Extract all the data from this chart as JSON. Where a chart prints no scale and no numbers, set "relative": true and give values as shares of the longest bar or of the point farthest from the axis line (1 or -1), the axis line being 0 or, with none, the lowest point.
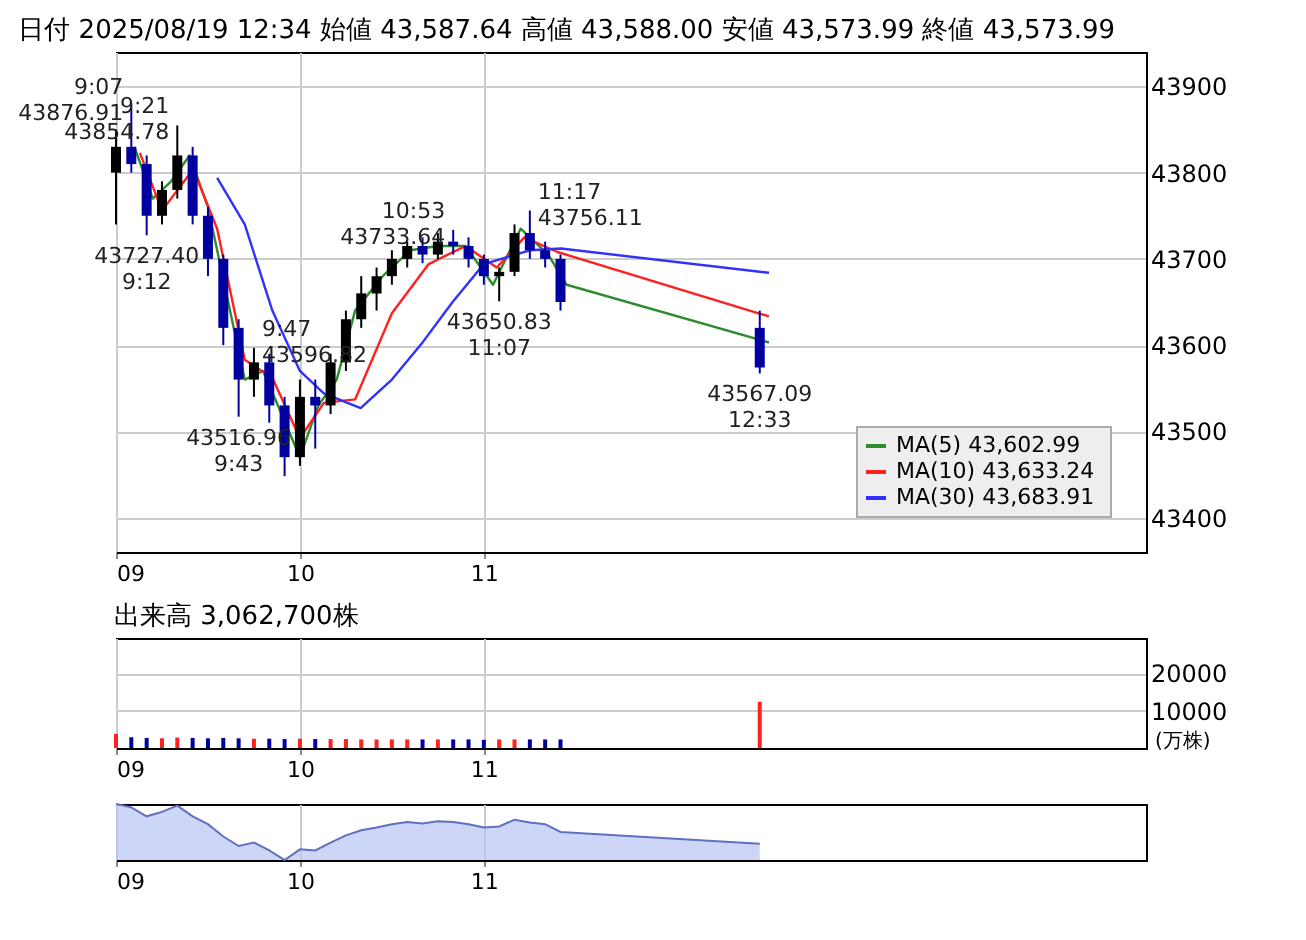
{
  "chart_data": [
    {
      "type": "candlestick",
      "title": "日付 2025/08/19 12:34 始値 43,587.64 高値 43,588.00 安値 43,573.99 終値 43,573.99",
      "x": [
        9,
        9.0833,
        9.1667,
        9.25,
        9.3333,
        9.4167,
        9.5,
        9.5833,
        9.6667,
        9.75,
        9.8333,
        9.9167,
        10,
        10.0833,
        10.1667,
        10.25,
        10.3333,
        10.4167,
        10.5,
        10.5833,
        10.6667,
        10.75,
        10.8333,
        10.9167,
        11,
        11.0833,
        11.1667,
        11.25,
        11.3333,
        11.4167,
        12.5
      ],
      "ohlc": [
        [
          43800,
          43850,
          43740,
          43830
        ],
        [
          43830,
          43876.91,
          43800,
          43810
        ],
        [
          43810,
          43820,
          43727.4,
          43750
        ],
        [
          43750,
          43790,
          43740,
          43780
        ],
        [
          43780,
          43854.78,
          43770,
          43820
        ],
        [
          43820,
          43830,
          43740,
          43750
        ],
        [
          43750,
          43760,
          43680,
          43700
        ],
        [
          43700,
          43705,
          43600,
          43620
        ],
        [
          43620,
          43630,
          43516.96,
          43560
        ],
        [
          43560,
          43596.82,
          43540,
          43580
        ],
        [
          43580,
          43590,
          43510,
          43530
        ],
        [
          43530,
          43540,
          43448,
          43470
        ],
        [
          43470,
          43560,
          43460,
          43540
        ],
        [
          43540,
          43560,
          43480,
          43530
        ],
        [
          43530,
          43590,
          43520,
          43580
        ],
        [
          43580,
          43640,
          43570,
          43630
        ],
        [
          43630,
          43680,
          43620,
          43660
        ],
        [
          43660,
          43690,
          43640,
          43680
        ],
        [
          43680,
          43710,
          43670,
          43700
        ],
        [
          43700,
          43720,
          43690,
          43715
        ],
        [
          43715,
          43725,
          43695,
          43705
        ],
        [
          43705,
          43730,
          43700,
          43720
        ],
        [
          43720,
          43733.64,
          43705,
          43715
        ],
        [
          43715,
          43725,
          43690,
          43700
        ],
        [
          43700,
          43705,
          43670,
          43680
        ],
        [
          43680,
          43690,
          43650.83,
          43685
        ],
        [
          43685,
          43740,
          43680,
          43730
        ],
        [
          43730,
          43756.11,
          43700,
          43710
        ],
        [
          43710,
          43720,
          43690,
          43700
        ],
        [
          43700,
          43705,
          43640,
          43650
        ],
        [
          43620,
          43640,
          43567.09,
          43573.99
        ]
      ],
      "colors": [
        "#000000",
        "#0000a0",
        "#0000a0",
        "#000000",
        "#000000",
        "#0000a0",
        "#0000a0",
        "#0000a0",
        "#0000a0",
        "#000000",
        "#0000a0",
        "#0000a0",
        "#000000",
        "#0000a0",
        "#000000",
        "#000000",
        "#000000",
        "#000000",
        "#000000",
        "#000000",
        "#0000a0",
        "#000000",
        "#0000a0",
        "#0000a0",
        "#0000a0",
        "#000000",
        "#000000",
        "#0000a0",
        "#0000a0",
        "#0000a0",
        "#0000a0"
      ],
      "series": [
        {
          "name": "MA(5)  43,602.99",
          "type": "line",
          "color": "#2e8b2e",
          "x": [
            9.1,
            9.2,
            9.3,
            9.4,
            9.5,
            9.6,
            9.7,
            9.8,
            9.9,
            10,
            10.1,
            10.2,
            10.3,
            10.45,
            10.6,
            10.75,
            10.9,
            11.05,
            11.2,
            11.35,
            11.45,
            12.55
          ],
          "values": [
            43830,
            43770,
            43790,
            43820,
            43760,
            43660,
            43560,
            43570,
            43520,
            43470,
            43530,
            43560,
            43640,
            43680,
            43710,
            43715,
            43715,
            43670,
            43735,
            43705,
            43670,
            43602.99
          ]
        },
        {
          "name": "MA(10)  43,633.24",
          "type": "line",
          "color": "#ff2020",
          "x": [
            9.13,
            9.25,
            9.42,
            9.55,
            9.7,
            9.85,
            10,
            10.13,
            10.3,
            10.5,
            10.7,
            10.9,
            11.07,
            11.22,
            11.4,
            12.55
          ],
          "values": [
            43823,
            43756,
            43804,
            43735,
            43583,
            43562,
            43492,
            43533,
            43537,
            43637,
            43694,
            43715,
            43690,
            43725,
            43708,
            43633.24
          ]
        },
        {
          "name": "MA(30)  43,683.91",
          "type": "line",
          "color": "#3030ff",
          "x": [
            9.55,
            9.7,
            9.85,
            10,
            10.13,
            10.33,
            10.5,
            10.67,
            10.83,
            11,
            11.25,
            11.42,
            12.55
          ],
          "values": [
            43794,
            43740,
            43640,
            43570,
            43544,
            43527,
            43560,
            43604,
            43650,
            43694,
            43710,
            43712,
            43683.91
          ]
        }
      ],
      "annotations": [
        {
          "text": "9:07\n43876.91",
          "x": 9.0833,
          "y": 43876.91
        },
        {
          "text": "9:21\n43854.78",
          "x": 9.3333,
          "y": 43854.78
        },
        {
          "text": "43727.40\n9:12",
          "x": 9.1667,
          "y": 43727.4
        },
        {
          "text": "9:47\n43596.82",
          "x": 9.75,
          "y": 43596.82
        },
        {
          "text": "43516.96\n9:43",
          "x": 9.6667,
          "y": 43516.96
        },
        {
          "text": "10:53\n43733.64",
          "x": 10.8333,
          "y": 43733.64
        },
        {
          "text": "11:17\n43756.11",
          "x": 11.25,
          "y": 43756.11
        },
        {
          "text": "43650.83\n11:07",
          "x": 11.0833,
          "y": 43650.83
        },
        {
          "text": "43567.09\n12:33",
          "x": 12.5,
          "y": 43567.09
        }
      ],
      "xlim": [
        9,
        14.6
      ],
      "xticks": [
        {
          "value": 9,
          "label": "09"
        },
        {
          "value": 10,
          "label": "10"
        },
        {
          "value": 11,
          "label": "11"
        }
      ],
      "ylim": [
        43360,
        43940
      ],
      "yticks": [
        43400,
        43500,
        43600,
        43700,
        43800,
        43900
      ],
      "grid": true,
      "legend": "bottom right"
    },
    {
      "type": "bar",
      "title": "出来高 3,062,700株",
      "ylabel": "(万株)",
      "x": [
        9,
        9.0833,
        9.1667,
        9.25,
        9.3333,
        9.4167,
        9.5,
        9.5833,
        9.6667,
        9.75,
        9.8333,
        9.9167,
        10,
        10.0833,
        10.1667,
        10.25,
        10.3333,
        10.4167,
        10.5,
        10.5833,
        10.6667,
        10.75,
        10.8333,
        10.9167,
        11,
        11.0833,
        11.1667,
        11.25,
        11.3333,
        11.4167,
        12.5
      ],
      "values": [
        3800,
        2900,
        2700,
        2600,
        2800,
        2700,
        2600,
        2700,
        2600,
        2500,
        2500,
        2400,
        2500,
        2400,
        2400,
        2400,
        2300,
        2300,
        2300,
        2300,
        2300,
        2300,
        2300,
        2300,
        2200,
        2300,
        2300,
        2300,
        2300,
        2300,
        12400
      ],
      "colors": [
        "#ff2020",
        "#0000a0",
        "#0000a0",
        "#ff2020",
        "#ff2020",
        "#0000a0",
        "#0000a0",
        "#0000a0",
        "#0000a0",
        "#ff2020",
        "#0000a0",
        "#0000a0",
        "#ff2020",
        "#0000a0",
        "#ff2020",
        "#ff2020",
        "#ff2020",
        "#ff2020",
        "#ff2020",
        "#ff2020",
        "#0000a0",
        "#ff2020",
        "#0000a0",
        "#0000a0",
        "#0000a0",
        "#ff2020",
        "#ff2020",
        "#0000a0",
        "#0000a0",
        "#0000a0",
        "#ff2020"
      ],
      "xlim": [
        9,
        14.6
      ],
      "xticks": [
        {
          "value": 9,
          "label": "09"
        },
        {
          "value": 10,
          "label": "10"
        },
        {
          "value": 11,
          "label": "11"
        }
      ],
      "ylim": [
        0,
        29500
      ],
      "yticks": [
        10000,
        20000
      ],
      "grid": true
    },
    {
      "type": "area",
      "relative": true,
      "color": "#b8c4f4",
      "x": [
        9,
        9.0833,
        9.1667,
        9.25,
        9.3333,
        9.4167,
        9.5,
        9.5833,
        9.6667,
        9.75,
        9.8333,
        9.9167,
        10,
        10.0833,
        10.1667,
        10.25,
        10.3333,
        10.4167,
        10.5,
        10.5833,
        10.6667,
        10.75,
        10.8333,
        10.9167,
        11,
        11.0833,
        11.1667,
        11.25,
        11.3333,
        11.4167,
        12.5
      ],
      "values": [
        1.0,
        0.94,
        0.78,
        0.86,
        0.97,
        0.78,
        0.64,
        0.42,
        0.25,
        0.31,
        0.17,
        0,
        0.19,
        0.17,
        0.31,
        0.44,
        0.53,
        0.58,
        0.64,
        0.68,
        0.65,
        0.69,
        0.68,
        0.64,
        0.58,
        0.6,
        0.72,
        0.67,
        0.64,
        0.5,
        0.29
      ],
      "xlim": [
        9,
        14.6
      ],
      "xticks": [
        {
          "value": 9,
          "label": "09"
        },
        {
          "value": 10,
          "label": "10"
        },
        {
          "value": 11,
          "label": "11"
        }
      ],
      "grid": "x"
    }
  ]
}
